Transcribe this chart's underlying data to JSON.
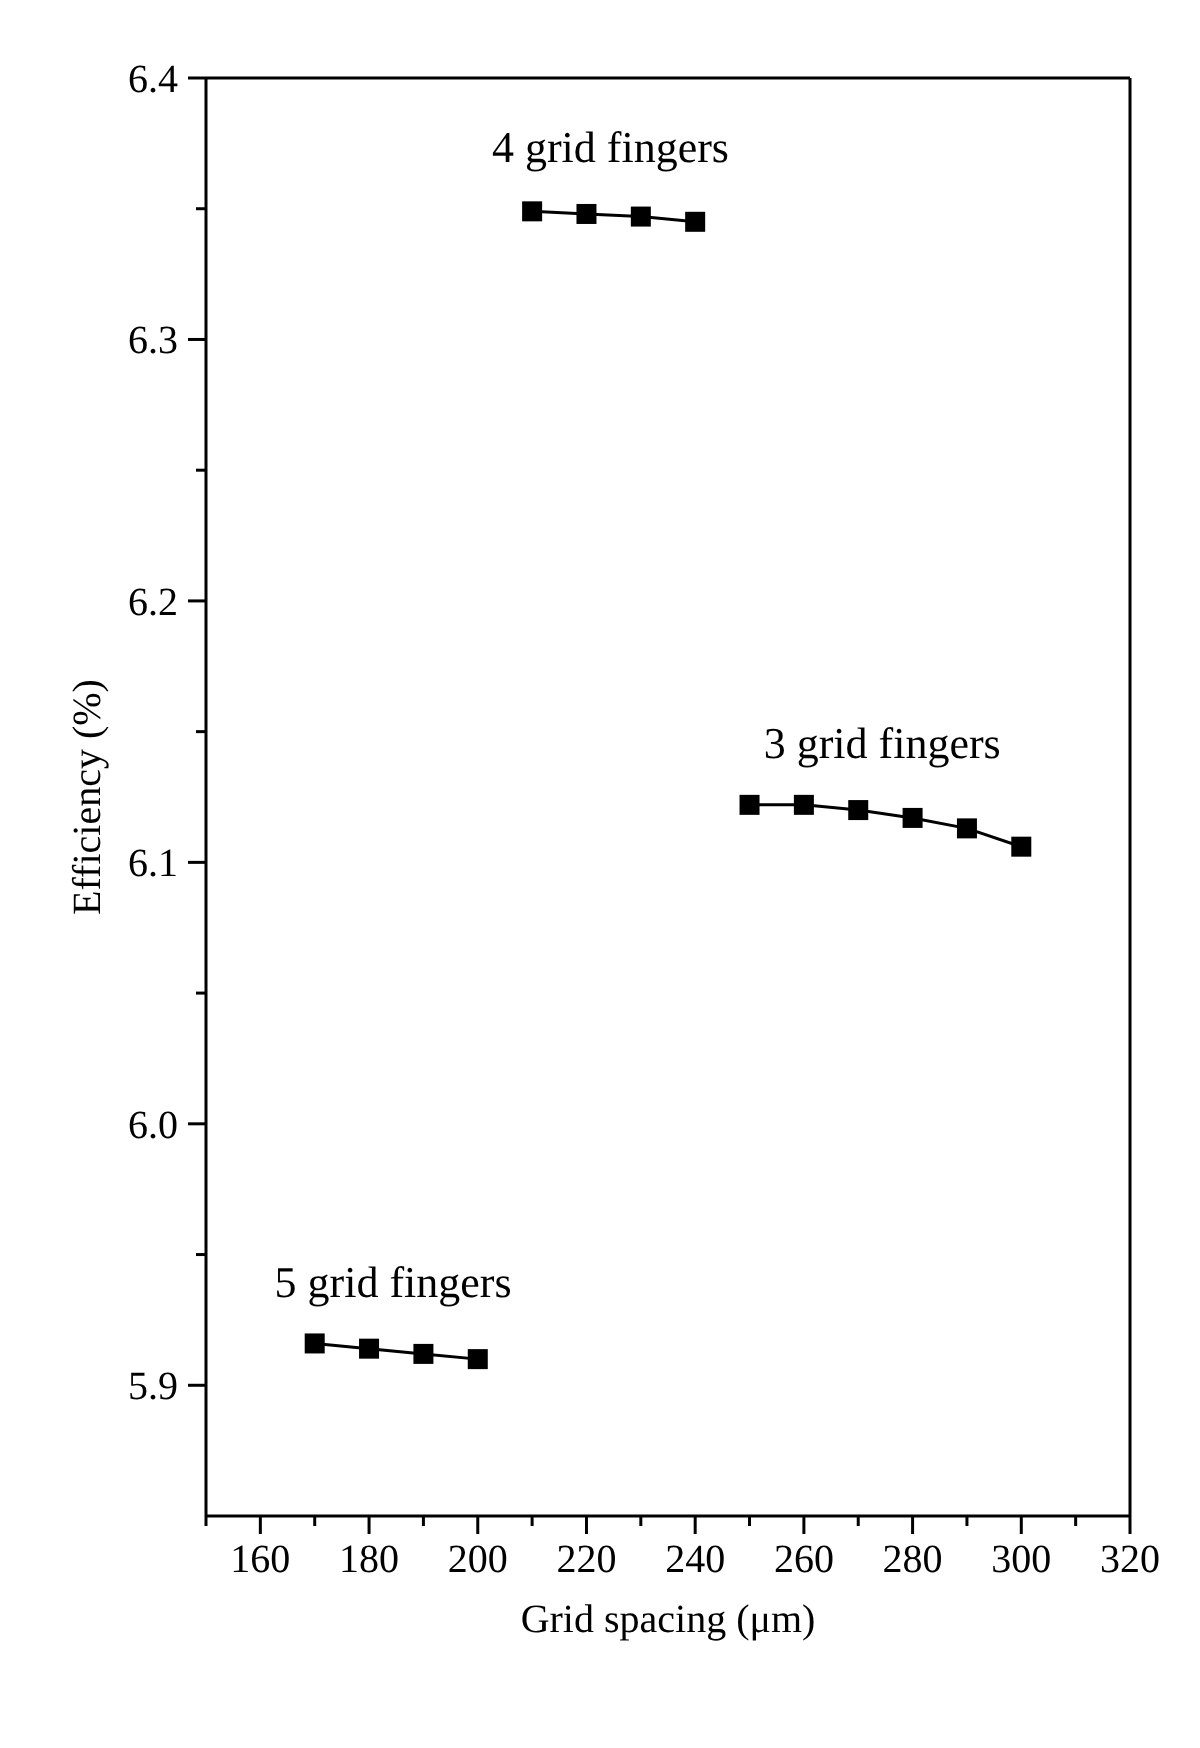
{
  "chart_data": {
    "type": "line",
    "xlabel": "Grid spacing (μm)",
    "ylabel": "Efficiency (%)",
    "xlim": [
      150,
      320
    ],
    "xticks": [
      {
        "value": 150,
        "label": null
      },
      160,
      {
        "value": 170,
        "label": null
      },
      180,
      {
        "value": 190,
        "label": null
      },
      200,
      {
        "value": 210,
        "label": null
      },
      220,
      {
        "value": 230,
        "label": null
      },
      240,
      {
        "value": 250,
        "label": null
      },
      260,
      {
        "value": 270,
        "label": null
      },
      280,
      {
        "value": 290,
        "label": null
      },
      300,
      {
        "value": 310,
        "label": null
      },
      320
    ],
    "ylim": [
      5.85,
      6.4
    ],
    "yticks": [
      5.9,
      {
        "value": 5.95,
        "label": null
      },
      {
        "value": 6.0,
        "label": "6.0"
      },
      {
        "value": 6.05,
        "label": null
      },
      6.1,
      {
        "value": 6.15,
        "label": null
      },
      6.2,
      {
        "value": 6.25,
        "label": null
      },
      6.3,
      {
        "value": 6.35,
        "label": null
      },
      6.4
    ],
    "marker": "square",
    "line_style": "solid",
    "series": [
      {
        "color": "#000000",
        "x": [
          170,
          180,
          190,
          200
        ],
        "values": [
          5.916,
          5.914,
          5.912,
          5.91
        ]
      },
      {
        "color": "#000000",
        "x": [
          210,
          220,
          230,
          240
        ],
        "values": [
          6.349,
          6.348,
          6.347,
          6.345
        ]
      },
      {
        "color": "#000000",
        "x": [
          250,
          260,
          270,
          280,
          290,
          300
        ],
        "values": [
          6.122,
          6.122,
          6.12,
          6.117,
          6.113,
          6.106
        ]
      }
    ],
    "annotations": [
      "5 grid fingers",
      "4 grid fingers",
      "3 grid fingers"
    ]
  }
}
